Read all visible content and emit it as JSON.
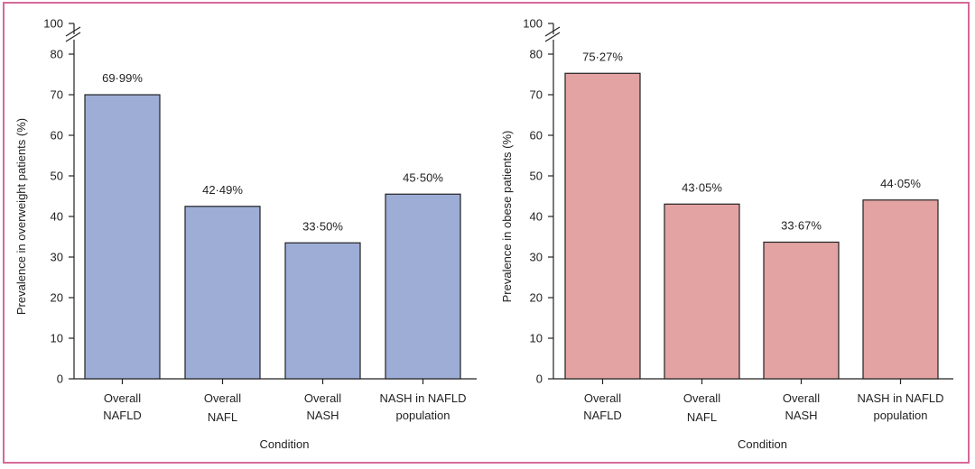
{
  "chart_data": [
    {
      "type": "bar",
      "title": "",
      "xlabel": "Condition",
      "ylabel": "Prevalence in overweight patients (%)",
      "ylim": [
        0,
        100
      ],
      "axis_break": [
        80,
        100
      ],
      "yticks": [
        0,
        10,
        20,
        30,
        40,
        50,
        60,
        70,
        80,
        100
      ],
      "categories": [
        [
          "Overall",
          "NAFLD"
        ],
        [
          "Overall",
          "NAFL"
        ],
        [
          "Overall",
          "NASH"
        ],
        [
          "NASH in NAFLD",
          "population"
        ]
      ],
      "values": [
        69.99,
        42.49,
        33.5,
        45.5
      ],
      "value_labels": [
        "69·99%",
        "42·49%",
        "33·50%",
        "45·50%"
      ],
      "bar_color": "#9dadd6",
      "grid": false
    },
    {
      "type": "bar",
      "title": "",
      "xlabel": "Condition",
      "ylabel": "Prevalence in obese patients (%)",
      "ylim": [
        0,
        100
      ],
      "axis_break": [
        80,
        100
      ],
      "yticks": [
        0,
        10,
        20,
        30,
        40,
        50,
        60,
        70,
        80,
        100
      ],
      "categories": [
        [
          "Overall",
          "NAFLD"
        ],
        [
          "Overall",
          "NAFL"
        ],
        [
          "Overall",
          "NASH"
        ],
        [
          "NASH in NAFLD",
          "population"
        ]
      ],
      "values": [
        75.27,
        43.05,
        33.67,
        44.05
      ],
      "value_labels": [
        "75·27%",
        "43·05%",
        "33·67%",
        "44·05%"
      ],
      "bar_color": "#e3a3a3",
      "grid": false
    }
  ],
  "colors": {
    "frame": "#d56a98",
    "axis": "#222222"
  }
}
